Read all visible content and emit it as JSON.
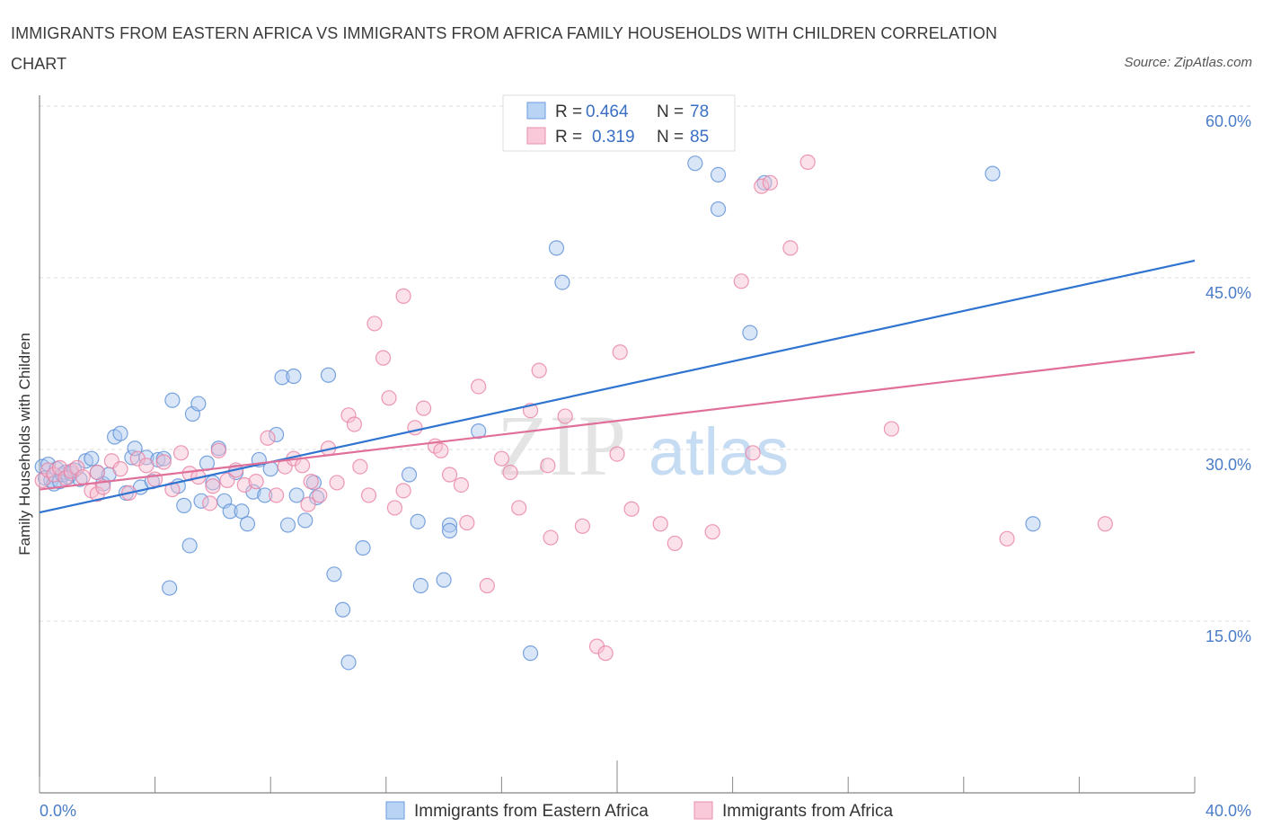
{
  "header": {
    "title": "IMMIGRANTS FROM EASTERN AFRICA VS IMMIGRANTS FROM AFRICA FAMILY HOUSEHOLDS WITH CHILDREN CORRELATION CHART",
    "source": "Source: ZipAtlas.com"
  },
  "watermark": {
    "zip": "ZIP",
    "atlas": "atlas"
  },
  "legend": {
    "series": [
      {
        "r_label": "R =",
        "r_value": "0.464",
        "n_label": "N =",
        "n_value": "78"
      },
      {
        "r_label": "R =",
        "r_value": "0.319",
        "n_label": "N =",
        "n_value": "85"
      }
    ]
  },
  "chart_data": {
    "type": "scatter",
    "title": "IMMIGRANTS FROM EASTERN AFRICA VS IMMIGRANTS FROM AFRICA FAMILY HOUSEHOLDS WITH CHILDREN CORRELATION CHART",
    "xlabel": "",
    "ylabel": "Family Households with Children",
    "xlim": [
      0,
      40
    ],
    "ylim": [
      0,
      60
    ],
    "x_tick_labels": [
      "0.0%",
      "40.0%"
    ],
    "y_ticks": [
      15,
      30,
      45,
      60
    ],
    "y_tick_labels": [
      "15.0%",
      "30.0%",
      "45.0%",
      "60.0%"
    ],
    "grid": true,
    "legend_position": "bottom",
    "colors": {
      "blue": "#5b8fd6",
      "pink": "#e87fa3",
      "blue_line": "#2f74d0",
      "pink_line": "#e0709a"
    },
    "series": [
      {
        "name": "Immigrants from Eastern Africa",
        "color": "#5b8fd6",
        "fill": "#aac8f0",
        "trend": {
          "x": [
            0,
            40
          ],
          "y": [
            24.5,
            46.5
          ]
        },
        "points": [
          [
            0.1,
            28.5
          ],
          [
            0.2,
            27.5
          ],
          [
            0.3,
            28.7
          ],
          [
            0.4,
            27.3
          ],
          [
            0.5,
            27.0
          ],
          [
            0.6,
            28.3
          ],
          [
            0.7,
            27.2
          ],
          [
            0.8,
            27.8
          ],
          [
            0.9,
            28.0
          ],
          [
            1.0,
            27.6
          ],
          [
            1.1,
            27.9
          ],
          [
            1.2,
            28.2
          ],
          [
            1.4,
            27.4
          ],
          [
            1.6,
            29.0
          ],
          [
            1.8,
            29.2
          ],
          [
            2.0,
            28.0
          ],
          [
            2.2,
            27.0
          ],
          [
            2.4,
            27.8
          ],
          [
            2.6,
            31.1
          ],
          [
            2.8,
            31.4
          ],
          [
            3.0,
            26.2
          ],
          [
            3.2,
            29.3
          ],
          [
            3.3,
            30.1
          ],
          [
            3.5,
            26.7
          ],
          [
            3.7,
            29.3
          ],
          [
            3.9,
            27.2
          ],
          [
            4.1,
            29.1
          ],
          [
            4.3,
            29.2
          ],
          [
            4.5,
            17.9
          ],
          [
            4.6,
            34.3
          ],
          [
            4.8,
            26.8
          ],
          [
            5.0,
            25.1
          ],
          [
            5.2,
            21.6
          ],
          [
            5.3,
            33.1
          ],
          [
            5.5,
            34.0
          ],
          [
            5.6,
            25.5
          ],
          [
            5.8,
            28.8
          ],
          [
            6.0,
            27.1
          ],
          [
            6.2,
            30.1
          ],
          [
            6.4,
            25.5
          ],
          [
            6.6,
            24.6
          ],
          [
            6.8,
            28.0
          ],
          [
            7.0,
            24.6
          ],
          [
            7.2,
            23.5
          ],
          [
            7.4,
            26.3
          ],
          [
            7.6,
            29.1
          ],
          [
            7.8,
            26.0
          ],
          [
            8.0,
            28.3
          ],
          [
            8.2,
            31.3
          ],
          [
            8.4,
            36.3
          ],
          [
            8.6,
            23.4
          ],
          [
            8.8,
            36.4
          ],
          [
            8.9,
            26.0
          ],
          [
            9.2,
            23.8
          ],
          [
            9.5,
            27.1
          ],
          [
            9.6,
            25.8
          ],
          [
            10.0,
            36.5
          ],
          [
            10.2,
            19.1
          ],
          [
            10.5,
            16.0
          ],
          [
            10.7,
            11.4
          ],
          [
            11.2,
            21.4
          ],
          [
            12.8,
            27.8
          ],
          [
            13.1,
            23.7
          ],
          [
            13.2,
            18.1
          ],
          [
            14.0,
            18.6
          ],
          [
            14.2,
            23.4
          ],
          [
            14.2,
            22.9
          ],
          [
            15.2,
            31.6
          ],
          [
            17.0,
            12.2
          ],
          [
            17.9,
            47.6
          ],
          [
            18.1,
            44.6
          ],
          [
            22.7,
            55.0
          ],
          [
            23.5,
            54.0
          ],
          [
            23.5,
            51.0
          ],
          [
            24.6,
            40.2
          ],
          [
            25.1,
            53.3
          ],
          [
            33.0,
            54.1
          ],
          [
            34.4,
            23.5
          ]
        ]
      },
      {
        "name": "Immigrants from Africa",
        "color": "#e87fa3",
        "fill": "#f7bfd1",
        "trend": {
          "x": [
            0,
            40
          ],
          "y": [
            26.5,
            38.5
          ]
        },
        "points": [
          [
            0.1,
            27.3
          ],
          [
            0.3,
            28.2
          ],
          [
            0.5,
            27.8
          ],
          [
            0.7,
            28.4
          ],
          [
            0.9,
            27.5
          ],
          [
            1.1,
            28.1
          ],
          [
            1.3,
            28.4
          ],
          [
            1.5,
            27.6
          ],
          [
            1.8,
            26.4
          ],
          [
            2.0,
            26.1
          ],
          [
            2.2,
            26.7
          ],
          [
            2.5,
            29.0
          ],
          [
            2.8,
            28.3
          ],
          [
            3.1,
            26.2
          ],
          [
            3.4,
            29.2
          ],
          [
            3.7,
            28.6
          ],
          [
            4.0,
            27.4
          ],
          [
            4.3,
            28.9
          ],
          [
            4.6,
            26.5
          ],
          [
            4.9,
            29.7
          ],
          [
            5.2,
            27.9
          ],
          [
            5.5,
            27.6
          ],
          [
            5.9,
            25.3
          ],
          [
            6.2,
            29.9
          ],
          [
            6.5,
            27.3
          ],
          [
            6.8,
            28.2
          ],
          [
            7.1,
            26.9
          ],
          [
            7.5,
            27.2
          ],
          [
            7.9,
            31.0
          ],
          [
            8.2,
            26.0
          ],
          [
            8.5,
            28.5
          ],
          [
            8.8,
            29.2
          ],
          [
            9.1,
            28.6
          ],
          [
            9.4,
            27.2
          ],
          [
            9.7,
            26.0
          ],
          [
            10.0,
            30.1
          ],
          [
            10.3,
            27.1
          ],
          [
            10.7,
            33.0
          ],
          [
            10.9,
            32.2
          ],
          [
            11.1,
            28.5
          ],
          [
            11.4,
            26.0
          ],
          [
            11.6,
            41.0
          ],
          [
            11.9,
            38.0
          ],
          [
            12.1,
            34.5
          ],
          [
            12.3,
            24.9
          ],
          [
            12.6,
            43.4
          ],
          [
            13.0,
            31.9
          ],
          [
            13.3,
            33.6
          ],
          [
            13.7,
            30.3
          ],
          [
            13.9,
            29.9
          ],
          [
            14.2,
            27.8
          ],
          [
            14.6,
            26.9
          ],
          [
            14.8,
            23.6
          ],
          [
            15.2,
            35.5
          ],
          [
            15.5,
            18.1
          ],
          [
            16.0,
            29.2
          ],
          [
            16.3,
            28.0
          ],
          [
            16.6,
            24.9
          ],
          [
            17.0,
            33.4
          ],
          [
            17.3,
            36.9
          ],
          [
            17.6,
            28.6
          ],
          [
            17.7,
            22.3
          ],
          [
            18.2,
            32.9
          ],
          [
            18.8,
            23.3
          ],
          [
            19.3,
            12.8
          ],
          [
            19.6,
            12.2
          ],
          [
            20.0,
            29.6
          ],
          [
            20.1,
            38.5
          ],
          [
            20.5,
            24.8
          ],
          [
            21.5,
            23.5
          ],
          [
            22.0,
            21.8
          ],
          [
            23.3,
            22.8
          ],
          [
            24.3,
            44.7
          ],
          [
            24.7,
            29.7
          ],
          [
            25.0,
            53.0
          ],
          [
            25.3,
            53.3
          ],
          [
            26.0,
            47.6
          ],
          [
            26.6,
            55.1
          ],
          [
            29.5,
            31.8
          ],
          [
            33.5,
            22.2
          ],
          [
            36.9,
            23.5
          ],
          [
            2.0,
            28.0
          ],
          [
            6.0,
            26.8
          ],
          [
            9.3,
            25.2
          ],
          [
            12.6,
            26.4
          ]
        ]
      }
    ]
  },
  "bottom_legend": {
    "items": [
      {
        "label": "Immigrants from Eastern Africa"
      },
      {
        "label": "Immigrants from Africa"
      }
    ]
  }
}
